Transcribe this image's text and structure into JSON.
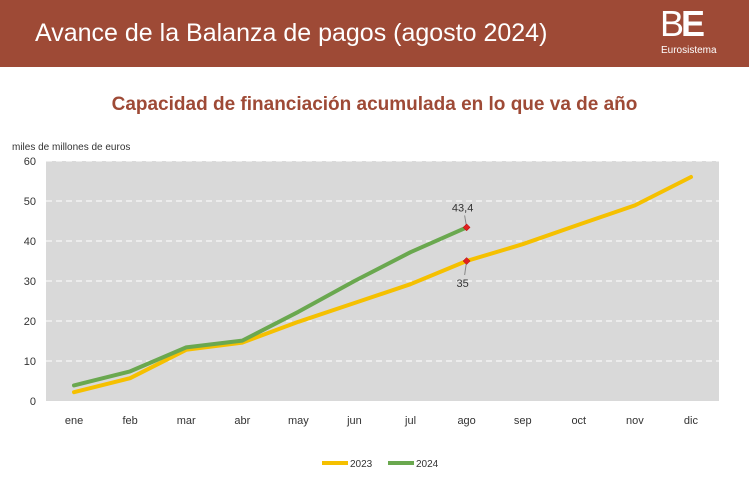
{
  "header": {
    "title": "Avance de la Balanza de pagos (agosto 2024)",
    "logo_mark_b": "B",
    "logo_mark_e": "E",
    "logo_sub": "Eurosistema"
  },
  "chart_data": {
    "type": "line",
    "title": "Capacidad de financiación acumulada en lo que va de año",
    "ylabel": "miles de millones de euros",
    "xlabel": "",
    "categories": [
      "ene",
      "feb",
      "mar",
      "abr",
      "may",
      "jun",
      "jul",
      "ago",
      "sep",
      "oct",
      "nov",
      "dic"
    ],
    "ylim": [
      0,
      60
    ],
    "yticks": [
      0,
      10,
      20,
      30,
      40,
      50,
      60
    ],
    "grid": true,
    "legend_position": "bottom",
    "series": [
      {
        "name": "2023",
        "color": "#f5c000",
        "values": [
          2.2,
          5.7,
          12.8,
          14.6,
          19.8,
          24.5,
          29.2,
          35,
          39.2,
          44.1,
          48.9,
          56
        ]
      },
      {
        "name": "2024",
        "color": "#6aa84f",
        "values": [
          3.9,
          7.4,
          13.4,
          15.1,
          22.3,
          30.0,
          37.2,
          43.4,
          null,
          null,
          null,
          null
        ]
      }
    ],
    "annotations": [
      {
        "series": "2024",
        "category": "ago",
        "value": 43.4,
        "label": "43,4"
      },
      {
        "series": "2023",
        "category": "ago",
        "value": 35,
        "label": "35"
      }
    ]
  }
}
